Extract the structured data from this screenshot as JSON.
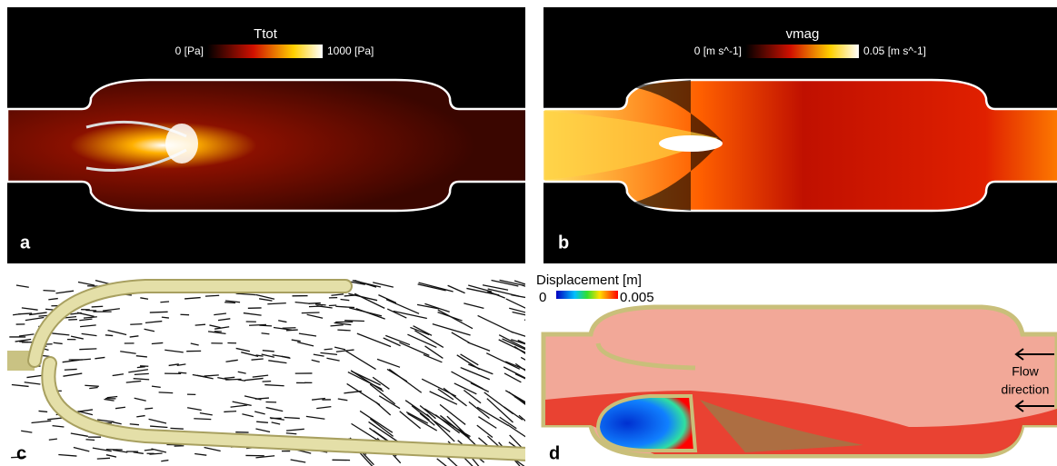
{
  "panels": [
    {
      "label": "a",
      "colorbar": {
        "title": "Ttot",
        "min_label": "0 [Pa]",
        "max_label": "1000 [Pa]"
      }
    },
    {
      "label": "b",
      "colorbar": {
        "title": "vmag",
        "min_label": "0 [m s^-1]",
        "max_label": "0.05 [m s^-1]"
      }
    },
    {
      "label": "c"
    },
    {
      "label": "d",
      "colorbar": {
        "title": "Displacement [m]",
        "min_label": "0",
        "max_label": "0.005"
      },
      "annotation": [
        "Flow",
        "direction"
      ]
    }
  ]
}
